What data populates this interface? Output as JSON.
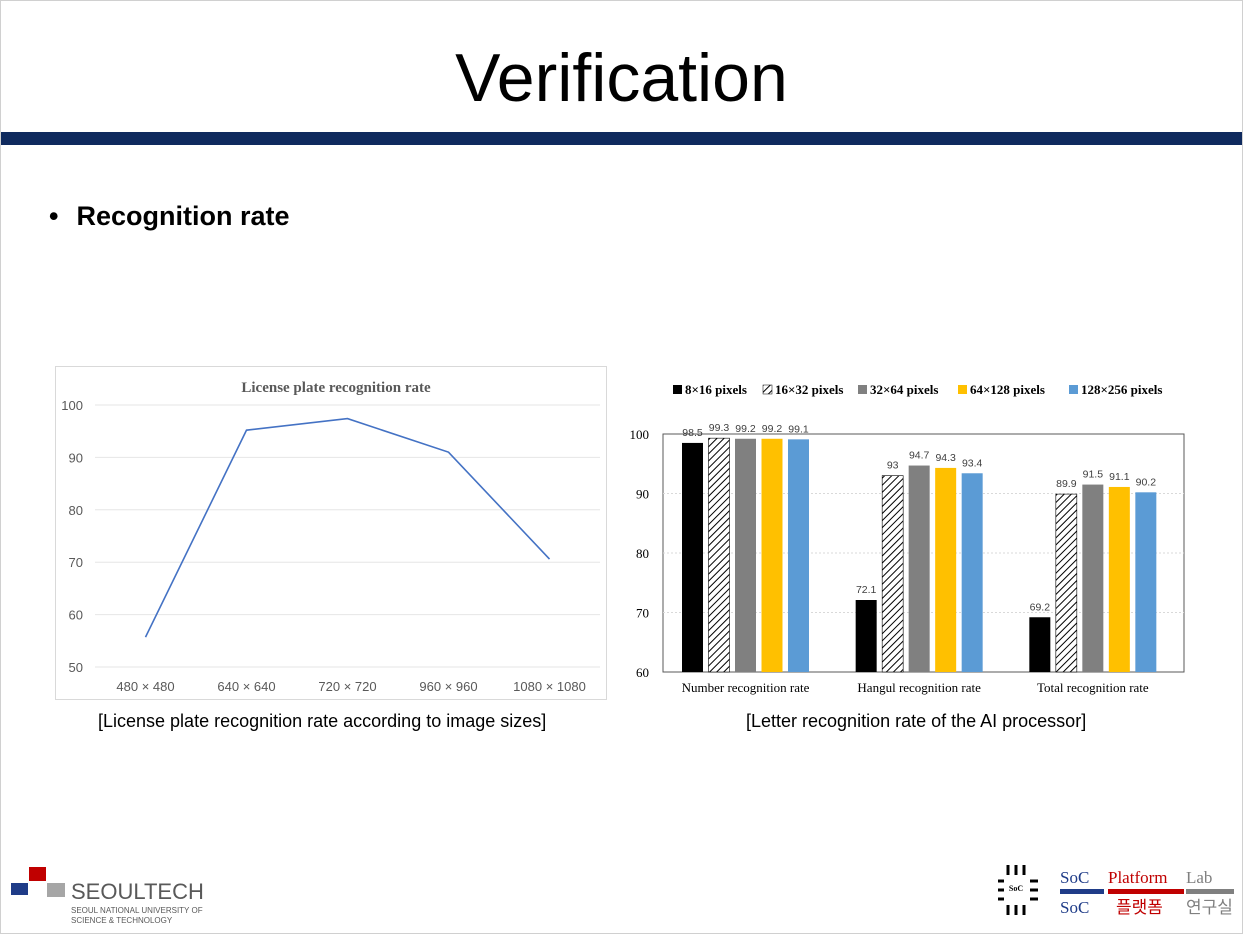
{
  "slide": {
    "title": "Verification",
    "bullet": "Recognition rate",
    "caption_left": "[License plate recognition rate according to image sizes]",
    "caption_right": "[Letter recognition rate of the AI processor]",
    "accent_color": "#0f2a5e"
  },
  "logos": {
    "left": {
      "name": "SEOULTECH",
      "sub1": "SEOUL NATIONAL UNIVERSITY OF",
      "sub2": "SCIENCE & TECHNOLOGY"
    },
    "right": {
      "chip": "SoC",
      "w1": "SoC",
      "w2": "Platform",
      "w3": "Lab",
      "k1": "SoC",
      "k2": "플랫폼",
      "k3": "연구실"
    }
  },
  "chart_data": [
    {
      "type": "line",
      "title": "License plate recognition rate",
      "categories": [
        "480 × 480",
        "640 × 640",
        "720 × 720",
        "960 × 960",
        "1080  ×  1080"
      ],
      "values": [
        55.7,
        95.2,
        97.4,
        91.0,
        70.6
      ],
      "ylim": [
        50,
        100
      ],
      "yticks": [
        50,
        60,
        70,
        80,
        90,
        100
      ],
      "grid": true,
      "color": "#4472c4"
    },
    {
      "type": "bar",
      "title": "",
      "categories": [
        "Number recognition rate",
        "Hangul recognition rate",
        "Total recognition rate"
      ],
      "series": [
        {
          "name": "8×16 pixels",
          "color": "#000000",
          "pattern": "solid",
          "values": [
            98.5,
            72.1,
            69.2
          ]
        },
        {
          "name": "16×32 pixels",
          "color": "#ffffff",
          "pattern": "hatch",
          "values": [
            99.3,
            93,
            89.9
          ]
        },
        {
          "name": "32×64 pixels",
          "color": "#808080",
          "pattern": "solid",
          "values": [
            99.2,
            94.7,
            91.5
          ]
        },
        {
          "name": "64×128 pixels",
          "color": "#ffc000",
          "pattern": "solid",
          "values": [
            99.2,
            94.3,
            91.1
          ]
        },
        {
          "name": "128×256 pixels",
          "color": "#5b9bd5",
          "pattern": "solid",
          "values": [
            99.1,
            93.4,
            90.2
          ]
        }
      ],
      "ylim": [
        60,
        100
      ],
      "yticks": [
        60,
        70,
        80,
        90,
        100
      ],
      "legend": "top"
    }
  ]
}
